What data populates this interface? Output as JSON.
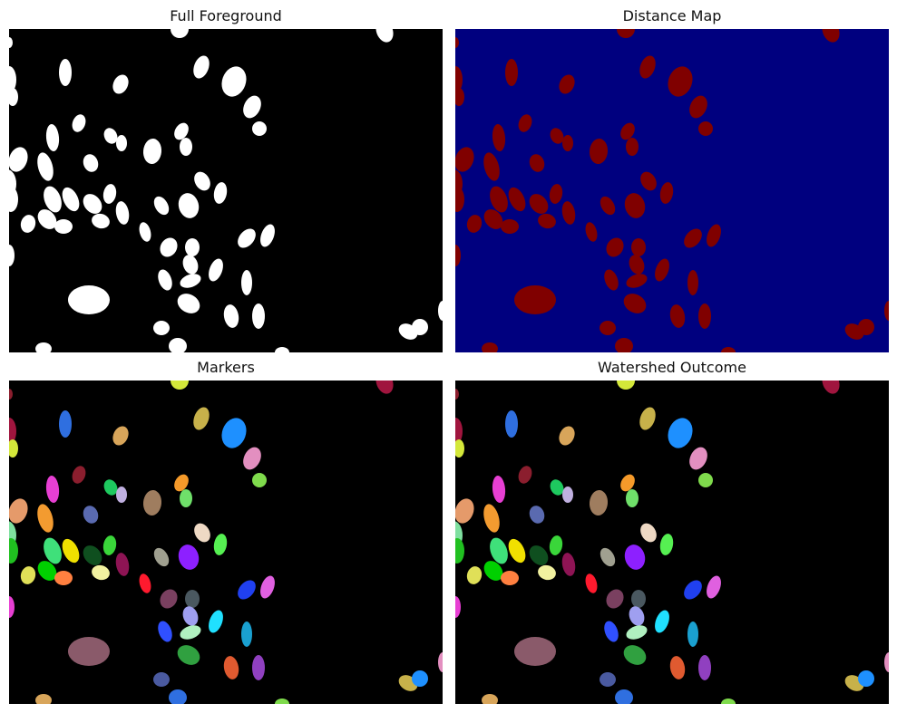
{
  "figure": {
    "panels": [
      {
        "id": "fg",
        "title": "Full Foreground",
        "background": "#000000",
        "blob_style": "white"
      },
      {
        "id": "dist",
        "title": "Distance Map",
        "background": "#00007f",
        "blob_style": "darkred"
      },
      {
        "id": "markers",
        "title": "Markers",
        "background": "#000000",
        "blob_style": "colored"
      },
      {
        "id": "watershed",
        "title": "Watershed Outcome",
        "background": "#000000",
        "blob_style": "colored"
      }
    ]
  },
  "colors": {
    "white": "#ffffff",
    "darkred": "#800000",
    "label_palette": [
      "#2f6fe0",
      "#d8a55a",
      "#c7b14a",
      "#1e90ff",
      "#e38fc0",
      "#a0153e",
      "#d4e83a",
      "#7fdb4c",
      "#e73fd3",
      "#8b1e2e",
      "#1ec95f",
      "#c0b0e0",
      "#f59a2a",
      "#6fe06a",
      "#9f7d5f",
      "#5a6ab0",
      "#e59a6a",
      "#f39b30",
      "#7fe0a0",
      "#3fe07a",
      "#f0e000",
      "#0f4f1f",
      "#3ad63a",
      "#8e1454",
      "#8d20ff",
      "#eed9c4",
      "#56f052",
      "#a0a090",
      "#20c020",
      "#e0e058",
      "#00d000",
      "#ff8040",
      "#f2f2a0",
      "#ff1a2e",
      "#7a4060",
      "#4a5860",
      "#9f9ff0",
      "#20e0ff",
      "#2040f0",
      "#e060e0",
      "#3050ff",
      "#b0f0c0",
      "#1aa0d0",
      "#30a040",
      "#8a5a6a",
      "#e05a30",
      "#9040c0",
      "#4a5aa0"
    ]
  }
}
